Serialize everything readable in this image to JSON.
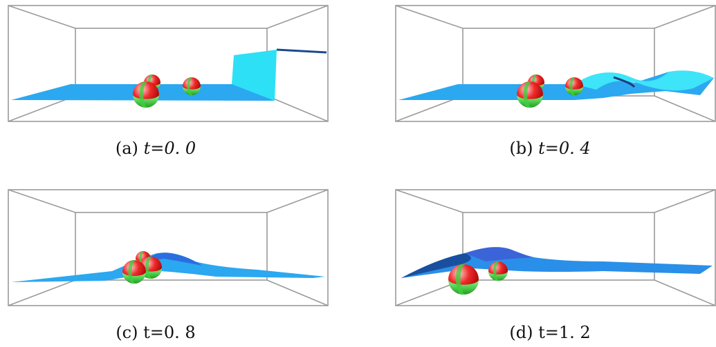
{
  "panels": [
    {
      "label": "(a)",
      "caption": "t=0. 0"
    },
    {
      "label": "(b)",
      "caption": "t=0. 4"
    },
    {
      "label": "(c)",
      "caption": "t=0. 8"
    },
    {
      "label": "(d)",
      "caption": "t=1. 2"
    }
  ]
}
